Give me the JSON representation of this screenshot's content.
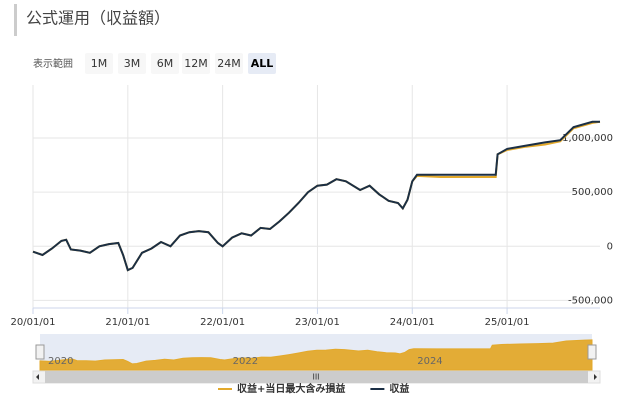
{
  "chart_data": {
    "type": "line",
    "title": "公式運用（収益額）",
    "range_selector": {
      "label": "表示範囲",
      "buttons": [
        "1M",
        "3M",
        "6M",
        "12M",
        "24M",
        "ALL"
      ],
      "selected": "ALL"
    },
    "x": [
      2020.0,
      2020.1,
      2020.2,
      2020.3,
      2020.35,
      2020.4,
      2020.5,
      2020.6,
      2020.7,
      2020.8,
      2020.9,
      2020.95,
      2021.0,
      2021.05,
      2021.15,
      2021.25,
      2021.35,
      2021.45,
      2021.55,
      2021.65,
      2021.75,
      2021.85,
      2021.95,
      2022.0,
      2022.1,
      2022.2,
      2022.3,
      2022.4,
      2022.5,
      2022.6,
      2022.7,
      2022.8,
      2022.9,
      2023.0,
      2023.1,
      2023.2,
      2023.3,
      2023.45,
      2023.55,
      2023.65,
      2023.75,
      2023.85,
      2023.9,
      2023.95,
      2024.0,
      2024.05,
      2024.3,
      2024.5,
      2024.7,
      2024.88,
      2024.9,
      2025.0,
      2025.2,
      2025.4,
      2025.56,
      2025.7,
      2025.9,
      2025.98
    ],
    "series": [
      {
        "name": "収益+当日最大含み損益",
        "color": "#e3a92b",
        "values": [
          -50000,
          -80000,
          -20000,
          50000,
          60000,
          -30000,
          -40000,
          -60000,
          0,
          20000,
          30000,
          -80000,
          -220000,
          -200000,
          -60000,
          -20000,
          40000,
          0,
          100000,
          130000,
          140000,
          130000,
          30000,
          0,
          80000,
          120000,
          100000,
          170000,
          160000,
          230000,
          310000,
          400000,
          500000,
          560000,
          570000,
          620000,
          600000,
          520000,
          560000,
          480000,
          420000,
          400000,
          350000,
          430000,
          600000,
          650000,
          640000,
          640000,
          640000,
          640000,
          850000,
          890000,
          920000,
          940000,
          970000,
          1090000,
          1140000,
          1150000
        ]
      },
      {
        "name": "収益",
        "color": "#1b2f45",
        "values": [
          -50000,
          -80000,
          -20000,
          50000,
          60000,
          -30000,
          -40000,
          -60000,
          0,
          20000,
          30000,
          -80000,
          -220000,
          -200000,
          -60000,
          -20000,
          40000,
          0,
          100000,
          130000,
          140000,
          130000,
          30000,
          0,
          80000,
          120000,
          100000,
          170000,
          160000,
          230000,
          310000,
          400000,
          500000,
          560000,
          570000,
          620000,
          600000,
          520000,
          560000,
          480000,
          420000,
          400000,
          350000,
          430000,
          600000,
          660000,
          660000,
          660000,
          660000,
          660000,
          850000,
          900000,
          930000,
          960000,
          980000,
          1100000,
          1150000,
          1150000
        ]
      }
    ],
    "xlim": [
      2020.0,
      2025.98
    ],
    "xticks": [
      {
        "value": 2020,
        "label": "20/01/01"
      },
      {
        "value": 2021,
        "label": "21/01/01"
      },
      {
        "value": 2022,
        "label": "22/01/01"
      },
      {
        "value": 2023,
        "label": "23/01/01"
      },
      {
        "value": 2024,
        "label": "24/01/01"
      },
      {
        "value": 2025,
        "label": "25/01/01"
      }
    ],
    "ylim": [
      -570000,
      1490000
    ],
    "yticks": [
      {
        "value": -500000,
        "label": "-500,000"
      },
      0,
      {
        "value": 500000,
        "label": "500,000"
      },
      {
        "value": 1000000,
        "label": "1,000,000"
      }
    ],
    "grid": true,
    "navigator_ticks": [
      {
        "value": 2020,
        "label": "2020"
      },
      {
        "value": 2022,
        "label": "2022"
      },
      {
        "value": 2024,
        "label": "2024"
      }
    ],
    "scrollbar_label": "III"
  }
}
